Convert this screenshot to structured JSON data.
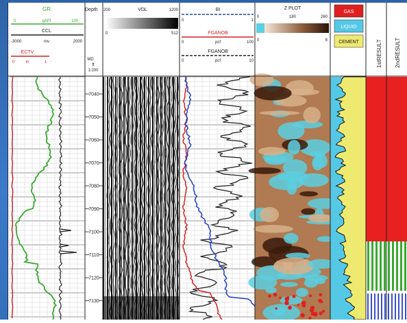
{
  "colors": {
    "frame": "#3a76c2",
    "grid": "#9a9a9a",
    "gr_curve": "#3aa832",
    "ccl_curve": "#222222",
    "ectv_curve": "#d42020",
    "bi_curve": "#222222",
    "fgan_red": "#d42020",
    "fgan_blue": "#2040c8",
    "zplot_brown": "#8a5a3a",
    "zplot_cyan": "#5ccfe0",
    "gas": "#e02020",
    "liquid": "#55c8e6",
    "cement": "#eeea70",
    "result_red": "#e82020",
    "result_green": "#3aa832",
    "result_blue": "#3a4fc8"
  },
  "track1": {
    "gr": {
      "name": "GR",
      "unit": "gAPI",
      "min": "0",
      "max": "100"
    },
    "ccl": {
      "name": "CCL",
      "unit": "mv",
      "min": "-3000",
      "max": "2000"
    },
    "ectv": {
      "name": "ECTV",
      "unit": "in",
      "min": "0",
      "max": "1"
    }
  },
  "depth_track": {
    "header": "Depth",
    "md_label": "MD",
    "md_sub": "ft",
    "scale": "1:200",
    "ticks": [
      "7040",
      "7050",
      "7060",
      "7070",
      "7080",
      "7090",
      "7100",
      "7110",
      "7120",
      "7130"
    ]
  },
  "vdl": {
    "name": "VDL",
    "min": "200",
    "max": "1200",
    "lo": "0",
    "hi": "512"
  },
  "track4": {
    "bi": {
      "name": "BI",
      "min": "0",
      "max": "1"
    },
    "fgan1": {
      "name": "FGANOB",
      "unit": "pcf",
      "min": "0",
      "max": "100"
    },
    "fgan2": {
      "name": "FGANOB",
      "unit": "pcf",
      "min": "0",
      "max": "10"
    }
  },
  "zplot": {
    "name": "Z PLOT",
    "min": "0",
    "mid": "180",
    "max": "260",
    "lo": "0",
    "hi": "8"
  },
  "legend": {
    "gas": "GAS",
    "liquid": "LIQUID",
    "cement": "CEMENT"
  },
  "results": {
    "first": "1stRESULT",
    "second": "2ndRESULT"
  }
}
